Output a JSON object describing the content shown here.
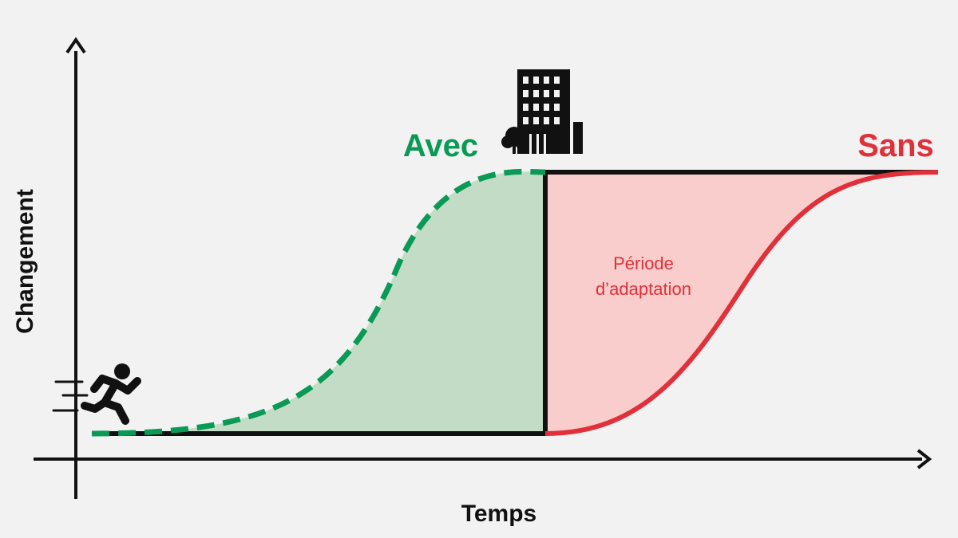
{
  "axes": {
    "x_label": "Temps",
    "y_label": "Changement"
  },
  "labels": {
    "with": "Avec",
    "without": "Sans",
    "period_line1": "Période",
    "period_line2": "d’adaptation"
  },
  "icons": {
    "runner": "running-person-icon",
    "building": "office-building-icon",
    "tree": "tree-icon"
  },
  "colors": {
    "background": "#f2f2f2",
    "axis": "#111111",
    "black_line": "#111111",
    "green": "#0a9a55",
    "green_fill": "#c3dcc6",
    "red": "#e0303a",
    "red_fill": "#f8cdcb"
  }
}
